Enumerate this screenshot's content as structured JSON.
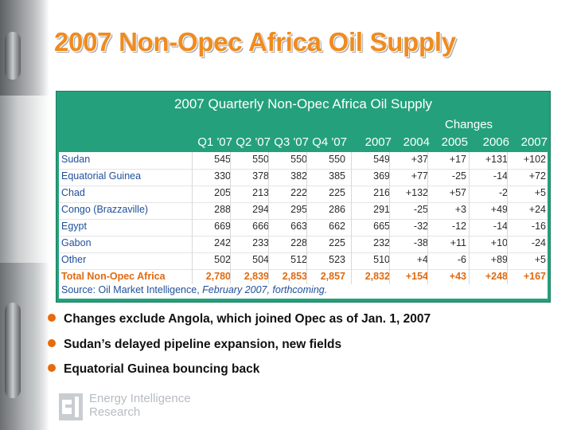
{
  "title": "2007 Non-Opec Africa Oil Supply",
  "table": {
    "title": "2007 Quarterly Non-Opec Africa Oil Supply",
    "changes_label": "Changes",
    "columns": [
      "Q1 '07",
      "Q2 '07",
      "Q3 '07",
      "Q4 '07",
      "2007",
      "2004",
      "2005",
      "2006",
      "2007"
    ],
    "rows": [
      {
        "label": "Sudan",
        "values": [
          "545",
          "550",
          "550",
          "550",
          "549",
          "+37",
          "+17",
          "+131",
          "+102"
        ]
      },
      {
        "label": "Equatorial Guinea",
        "values": [
          "330",
          "378",
          "382",
          "385",
          "369",
          "+77",
          "-25",
          "-14",
          "+72"
        ]
      },
      {
        "label": "Chad",
        "values": [
          "205",
          "213",
          "222",
          "225",
          "216",
          "+132",
          "+57",
          "-2",
          "+5"
        ]
      },
      {
        "label": "Congo (Brazzaville)",
        "values": [
          "288",
          "294",
          "295",
          "286",
          "291",
          "-25",
          "+3",
          "+49",
          "+24"
        ]
      },
      {
        "label": "Egypt",
        "values": [
          "669",
          "666",
          "663",
          "662",
          "665",
          "-32",
          "-12",
          "-14",
          "-16"
        ]
      },
      {
        "label": "Gabon",
        "values": [
          "242",
          "233",
          "228",
          "225",
          "232",
          "-38",
          "+11",
          "+10",
          "-24"
        ]
      },
      {
        "label": "Other",
        "values": [
          "502",
          "504",
          "512",
          "523",
          "510",
          "+4",
          "-6",
          "+89",
          "+5"
        ]
      }
    ],
    "total": {
      "label": "Total Non-Opec Africa",
      "values": [
        "2,780",
        "2,839",
        "2,853",
        "2,857",
        "2,832",
        "+154",
        "+43",
        "+248",
        "+167"
      ]
    },
    "source_prefix": "Source: Oil Market Intelligence, ",
    "source_italic": "February 2007, forthcoming."
  },
  "bullets": [
    "Changes exclude Angola, which joined Opec as of Jan. 1, 2007",
    "Sudan’s delayed pipeline expansion, new fields",
    "Equatorial Guinea bouncing back"
  ],
  "logo": {
    "line1": "Energy Intelligence",
    "line2": "Research",
    "icon": "ei-logo-icon"
  },
  "colors": {
    "title": "#f08b1e",
    "panel": "#24a17c",
    "bullet_dot": "#e86a0c",
    "label_text": "#1f4f9a"
  }
}
